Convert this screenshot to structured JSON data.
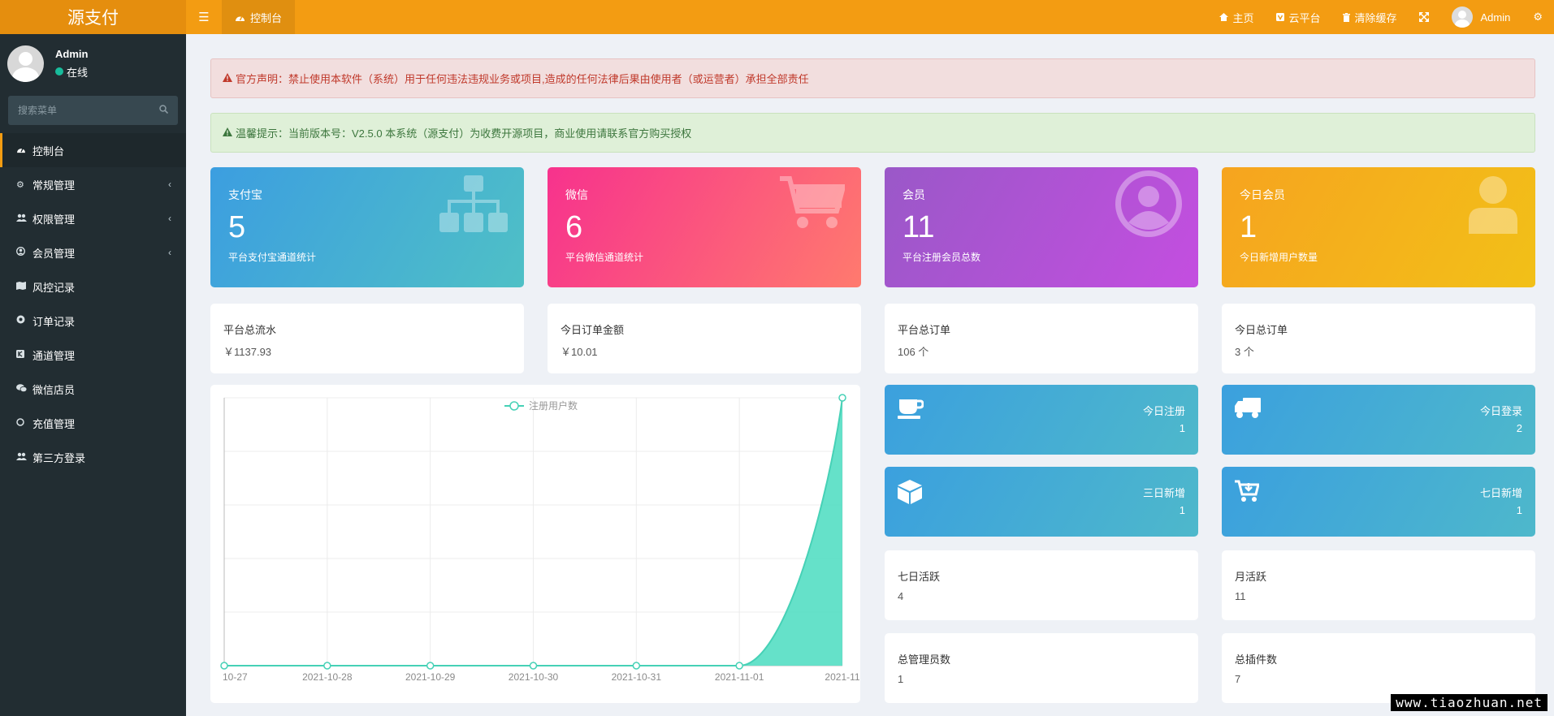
{
  "app": {
    "logo": "源支付"
  },
  "header": {
    "tab_label": "控制台",
    "links": [
      {
        "icon": "home-icon",
        "label": "主页"
      },
      {
        "icon": "cloud-platform-icon",
        "label": "云平台"
      },
      {
        "icon": "trash-icon",
        "label": "清除缓存"
      }
    ],
    "user_name": "Admin"
  },
  "sidebar": {
    "user_name": "Admin",
    "status": "在线",
    "search_placeholder": "搜索菜单",
    "items": [
      {
        "label": "控制台",
        "icon": "dashboard-icon",
        "active": true,
        "has_children": false
      },
      {
        "label": "常规管理",
        "icon": "cogs-icon",
        "active": false,
        "has_children": true
      },
      {
        "label": "权限管理",
        "icon": "users-icon",
        "active": false,
        "has_children": true
      },
      {
        "label": "会员管理",
        "icon": "user-circle-icon",
        "active": false,
        "has_children": true
      },
      {
        "label": "风控记录",
        "icon": "map-icon",
        "active": false,
        "has_children": false
      },
      {
        "label": "订单记录",
        "icon": "chrome-icon",
        "active": false,
        "has_children": false
      },
      {
        "label": "通道管理",
        "icon": "vk-icon",
        "active": false,
        "has_children": false
      },
      {
        "label": "微信店员",
        "icon": "wechat-icon",
        "active": false,
        "has_children": false
      },
      {
        "label": "充值管理",
        "icon": "circle-icon",
        "active": false,
        "has_children": false
      },
      {
        "label": "第三方登录",
        "icon": "users-icon",
        "active": false,
        "has_children": false
      }
    ]
  },
  "alerts": {
    "danger": "官方声明：禁止使用本软件（系统）用于任何违法违规业务或项目,造成的任何法律后果由使用者（或运营者）承担全部责任",
    "success": "温馨提示：当前版本号：V2.5.0 本系统（源支付）为收费开源项目，商业使用请联系官方购买授权"
  },
  "stat_cards": [
    {
      "title": "支付宝",
      "value": "5",
      "sub": "平台支付宝通道统计",
      "icon": "sitemap-icon"
    },
    {
      "title": "微信",
      "value": "6",
      "sub": "平台微信通道统计",
      "icon": "cart-icon"
    },
    {
      "title": "会员",
      "value": "11",
      "sub": "平台注册会员总数",
      "icon": "user-circle-icon"
    },
    {
      "title": "今日会员",
      "value": "1",
      "sub": "今日新增用户数量",
      "icon": "user-icon"
    }
  ],
  "info_cards": [
    {
      "label": "平台总流水",
      "value": "￥1137.93"
    },
    {
      "label": "今日订单金额",
      "value": "￥10.01"
    },
    {
      "label": "平台总订单",
      "value": "106 个"
    },
    {
      "label": "今日总订单",
      "value": "3 个"
    }
  ],
  "mini_cards": [
    {
      "label": "今日注册",
      "value": "1",
      "icon": "coffee-icon"
    },
    {
      "label": "今日登录",
      "value": "2",
      "icon": "truck-icon"
    },
    {
      "label": "三日新增",
      "value": "1",
      "icon": "cube-icon"
    },
    {
      "label": "七日新增",
      "value": "1",
      "icon": "cart-arrow-icon"
    }
  ],
  "bottom_cards": [
    {
      "label": "七日活跃",
      "value": "4"
    },
    {
      "label": "月活跃",
      "value": "11"
    },
    {
      "label": "总管理员数",
      "value": "1"
    },
    {
      "label": "总插件数",
      "value": "7"
    }
  ],
  "chart_data": {
    "type": "area",
    "series": [
      {
        "name": "注册用户数",
        "values": [
          0,
          0,
          0,
          0,
          0,
          0,
          1
        ]
      }
    ],
    "x": [
      "10-27",
      "2021-10-28",
      "2021-10-29",
      "2021-10-30",
      "2021-10-31",
      "2021-11-01",
      "2021-11"
    ],
    "ylim": [
      0,
      1
    ],
    "legend": "top-center",
    "grid": true,
    "colors": {
      "fill": "#5ddfc6",
      "line": "#46d1b6"
    }
  },
  "watermark": "www.tiaozhuan.net"
}
